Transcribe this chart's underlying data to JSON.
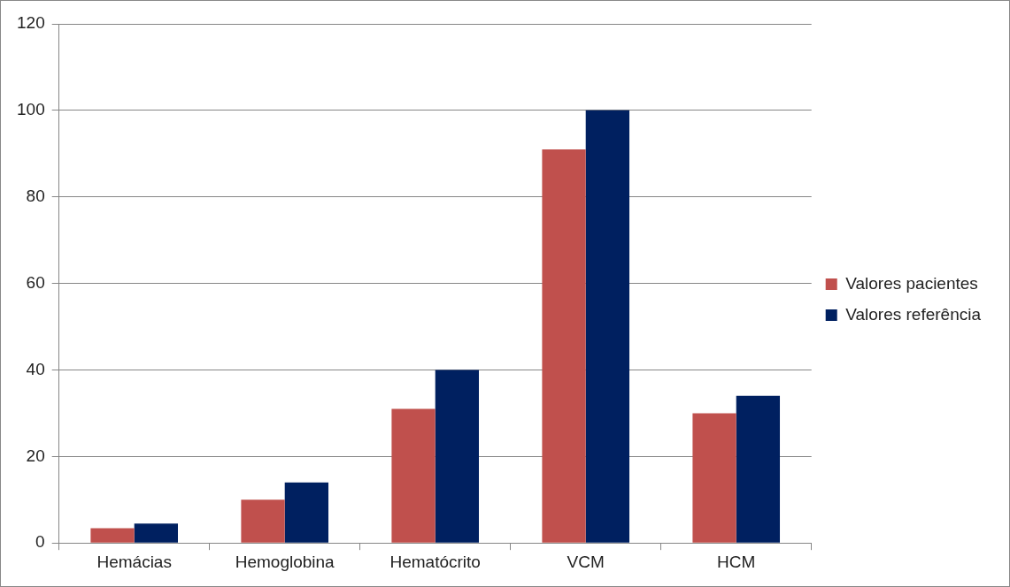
{
  "chart_data": {
    "type": "bar",
    "categories": [
      "Hemácias",
      "Hemoglobina",
      "Hematócrito",
      "VCM",
      "HCM"
    ],
    "series": [
      {
        "name": "Valores pacientes",
        "color": "#c0504d",
        "values": [
          3.4,
          10,
          31,
          91,
          30
        ]
      },
      {
        "name": "Valores referência",
        "color": "#002060",
        "values": [
          4.5,
          14,
          40,
          100,
          34
        ]
      }
    ],
    "ylim": [
      0,
      120
    ],
    "yticks": [
      0,
      20,
      40,
      60,
      80,
      100,
      120
    ],
    "grid": "y",
    "legend": "right"
  }
}
